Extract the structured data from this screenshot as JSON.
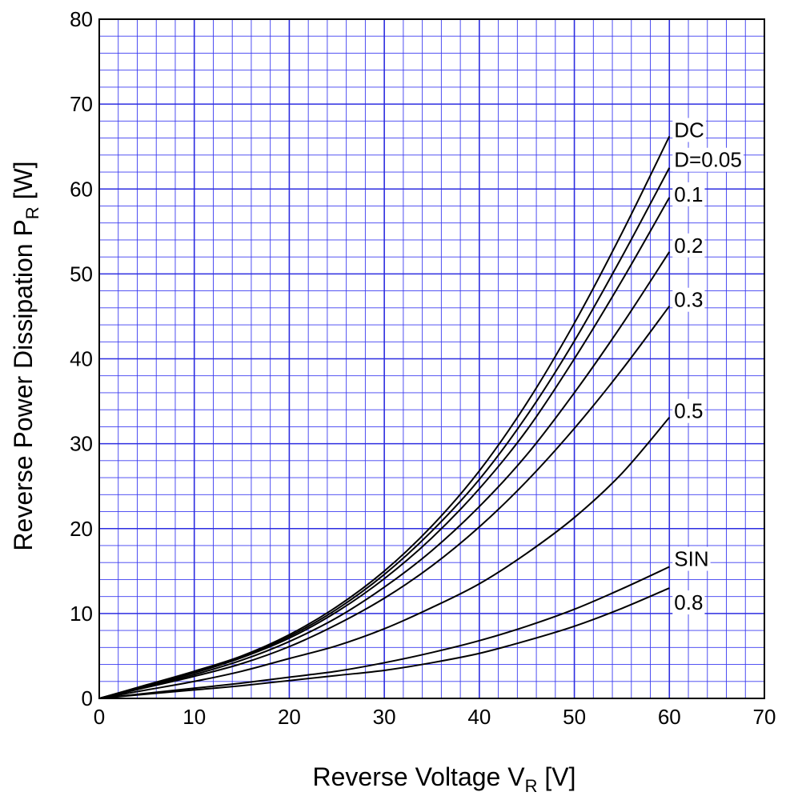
{
  "chart_data": {
    "type": "line",
    "xlabel_main": "Reverse Voltage  V",
    "xlabel_sub": "R",
    "xlabel_unit": "  [V]",
    "ylabel_main": "Reverse Power Dissipation  P",
    "ylabel_sub": "R",
    "ylabel_unit": "  [W]",
    "xlim": [
      0,
      70
    ],
    "ylim": [
      0,
      80
    ],
    "xticks": [
      "0",
      "10",
      "20",
      "30",
      "40",
      "50",
      "60",
      "70"
    ],
    "yticks": [
      "0",
      "10",
      "20",
      "30",
      "40",
      "50",
      "60",
      "70",
      "80"
    ],
    "grid": true,
    "colors": {
      "major_grid": "#2d2de0",
      "minor_grid": "#3b3bf0",
      "curve": "#000000",
      "frame": "#000000"
    },
    "series": [
      {
        "name": "DC",
        "x": [
          0,
          5,
          10,
          15,
          20,
          25,
          30,
          35,
          40,
          45,
          50,
          55,
          60
        ],
        "y": [
          0,
          1.6,
          3.2,
          5.0,
          7.5,
          10.8,
          15.0,
          20.3,
          26.8,
          34.8,
          44.2,
          54.8,
          66.2
        ]
      },
      {
        "name": "D=0.05",
        "x": [
          0,
          5,
          10,
          15,
          20,
          25,
          30,
          35,
          40,
          45,
          50,
          55,
          60
        ],
        "y": [
          0,
          1.5,
          3.1,
          4.9,
          7.3,
          10.5,
          14.6,
          19.7,
          25.8,
          33.3,
          42.1,
          52.0,
          62.5
        ]
      },
      {
        "name": "0.1",
        "x": [
          0,
          5,
          10,
          15,
          20,
          25,
          30,
          35,
          40,
          45,
          50,
          55,
          60
        ],
        "y": [
          0,
          1.5,
          3.0,
          4.8,
          7.1,
          10.2,
          14.1,
          18.9,
          24.7,
          31.6,
          40.0,
          49.2,
          59.0
        ]
      },
      {
        "name": "0.2",
        "x": [
          0,
          5,
          10,
          15,
          20,
          25,
          30,
          35,
          40,
          45,
          50,
          55,
          60
        ],
        "y": [
          0,
          1.4,
          2.8,
          4.5,
          6.7,
          9.5,
          13.1,
          17.4,
          22.6,
          28.7,
          36.0,
          44.0,
          52.6
        ]
      },
      {
        "name": "0.3",
        "x": [
          0,
          5,
          10,
          15,
          20,
          25,
          30,
          35,
          40,
          45,
          50,
          55,
          60
        ],
        "y": [
          0,
          1.3,
          2.6,
          4.1,
          6.1,
          8.7,
          11.8,
          15.6,
          20.2,
          25.6,
          31.8,
          38.7,
          46.2
        ]
      },
      {
        "name": "0.5",
        "x": [
          0,
          5,
          10,
          15,
          20,
          25,
          30,
          35,
          40,
          45,
          50,
          55,
          60
        ],
        "y": [
          0,
          1.0,
          2.0,
          3.2,
          4.7,
          6.2,
          8.2,
          10.7,
          13.5,
          17.1,
          21.3,
          26.5,
          33.1
        ]
      },
      {
        "name": "SIN",
        "x": [
          0,
          5,
          10,
          15,
          20,
          25,
          30,
          35,
          40,
          45,
          50,
          55,
          60
        ],
        "y": [
          0,
          0.6,
          1.2,
          1.8,
          2.5,
          3.2,
          4.2,
          5.4,
          6.8,
          8.5,
          10.5,
          12.9,
          15.5
        ]
      },
      {
        "name": "0.8",
        "x": [
          0,
          5,
          10,
          15,
          20,
          25,
          30,
          35,
          40,
          45,
          50,
          55,
          60
        ],
        "y": [
          0,
          0.5,
          1.0,
          1.5,
          2.1,
          2.7,
          3.3,
          4.2,
          5.3,
          6.8,
          8.5,
          10.6,
          13.0
        ]
      }
    ]
  }
}
